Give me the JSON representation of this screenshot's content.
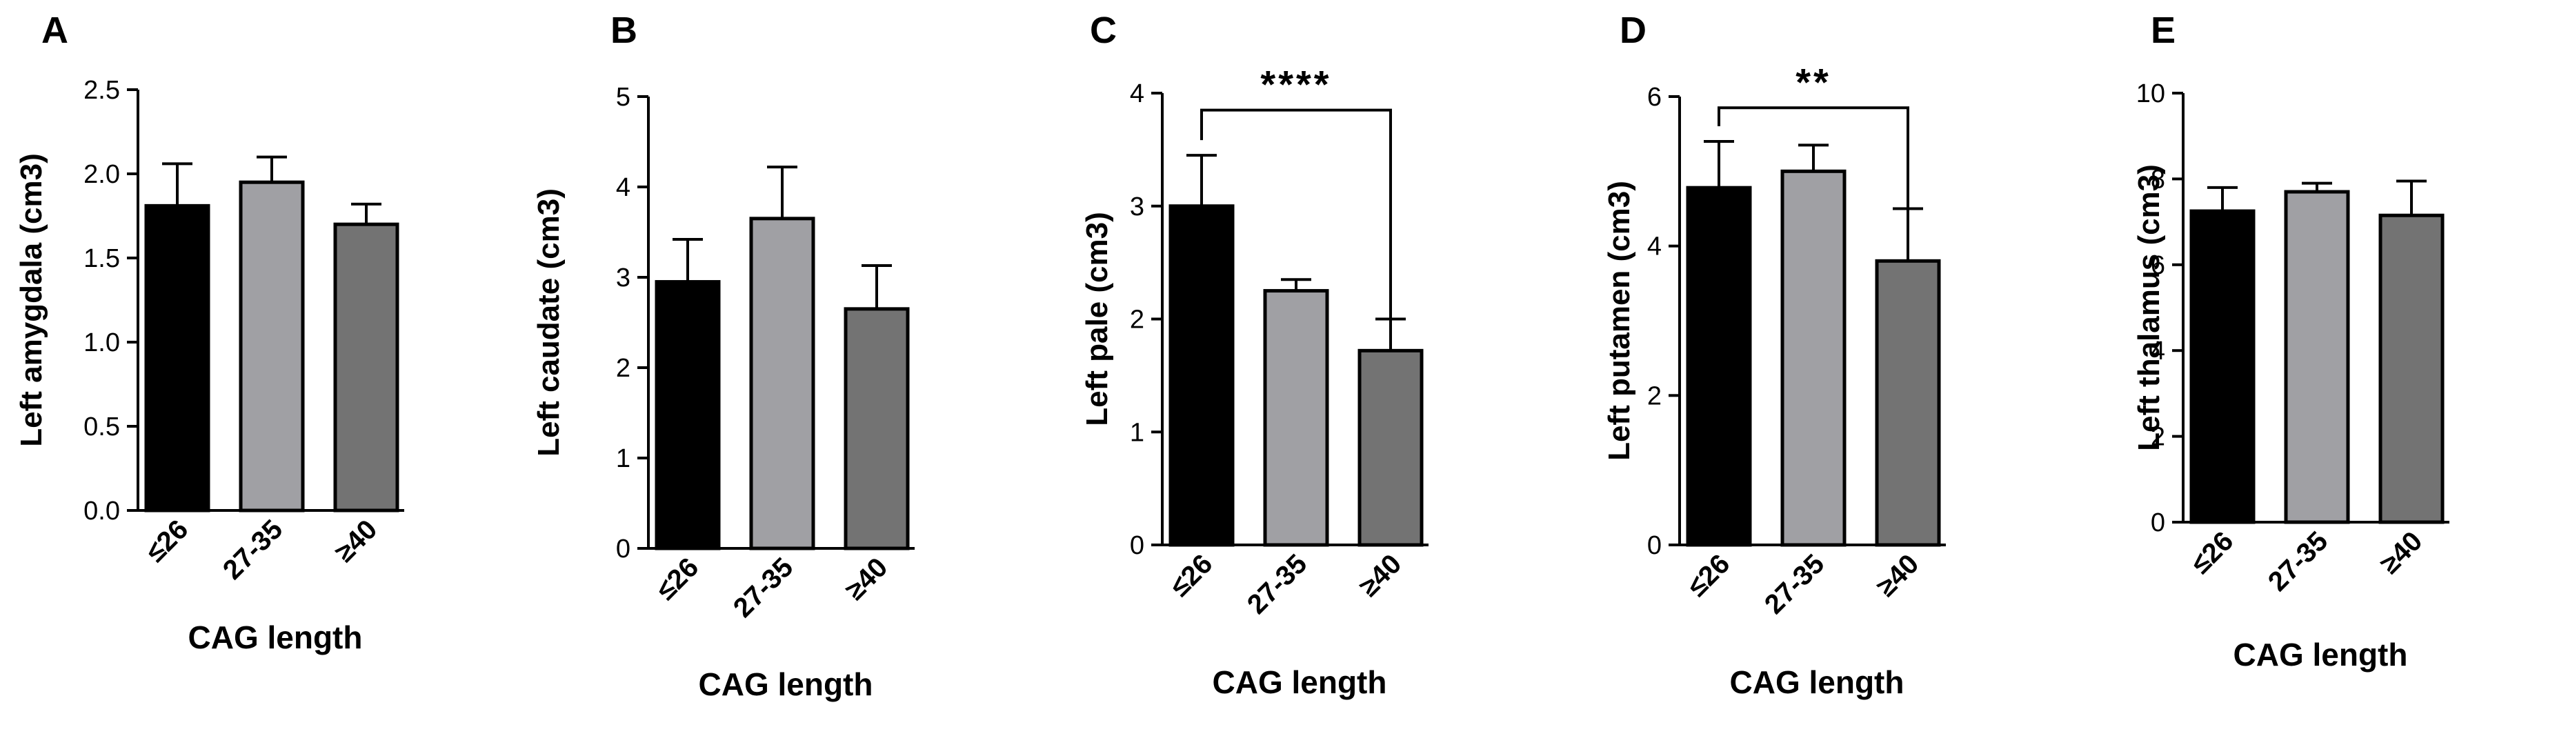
{
  "chart_data": [
    {
      "type": "bar",
      "panel": "A",
      "categories": [
        "≤26",
        "27-35",
        "≥40"
      ],
      "values": [
        1.81,
        1.95,
        1.7
      ],
      "error_upper": [
        0.25,
        0.15,
        0.12
      ],
      "ylabel": "Left amygdala (cm3)",
      "xlabel": "CAG length",
      "ylim": [
        0,
        2.5
      ],
      "yticks": [
        "0.0",
        "0.5",
        "1.0",
        "1.5",
        "2.0",
        "2.5"
      ],
      "significance": null
    },
    {
      "type": "bar",
      "panel": "B",
      "categories": [
        "≤26",
        "27-35",
        "≥40"
      ],
      "values": [
        2.95,
        3.65,
        2.65
      ],
      "error_upper": [
        0.47,
        0.57,
        0.48
      ],
      "ylabel": "Left caudate (cm3)",
      "xlabel": "CAG length",
      "ylim": [
        0,
        5
      ],
      "yticks": [
        "0",
        "1",
        "2",
        "3",
        "4",
        "5"
      ],
      "significance": null
    },
    {
      "type": "bar",
      "panel": "C",
      "categories": [
        "≤26",
        "27-35",
        "≥40"
      ],
      "values": [
        3.0,
        2.25,
        1.72
      ],
      "error_upper": [
        0.45,
        0.1,
        0.28
      ],
      "ylabel": "Left pale (cm3)",
      "xlabel": "CAG length",
      "ylim": [
        0,
        4
      ],
      "yticks": [
        "0",
        "1",
        "2",
        "3",
        "4"
      ],
      "significance": {
        "from": 0,
        "to": 2,
        "label": "****",
        "y": 3.85
      }
    },
    {
      "type": "bar",
      "panel": "D",
      "categories": [
        "≤26",
        "27-35",
        "≥40"
      ],
      "values": [
        4.78,
        5.0,
        3.8
      ],
      "error_upper": [
        0.62,
        0.35,
        0.7
      ],
      "ylabel": "Left putamen (cm3)",
      "xlabel": "CAG length",
      "ylim": [
        0,
        6
      ],
      "yticks": [
        "0",
        "2",
        "4",
        "6"
      ],
      "significance": {
        "from": 0,
        "to": 2,
        "label": "**",
        "y": 5.85
      }
    },
    {
      "type": "bar",
      "panel": "E",
      "categories": [
        "≤26",
        "27-35",
        "≥40"
      ],
      "values": [
        7.25,
        7.7,
        7.15
      ],
      "error_upper": [
        0.55,
        0.2,
        0.8
      ],
      "ylabel": "Left thalamus (cm3)",
      "xlabel": "CAG length",
      "ylim": [
        0,
        10
      ],
      "yticks": [
        "0",
        "2",
        "4",
        "6",
        "8",
        "10"
      ],
      "significance": null
    }
  ],
  "colors": {
    "bars": [
      "#000000",
      "#a0a0a4",
      "#737373"
    ],
    "outline": "#000000"
  }
}
